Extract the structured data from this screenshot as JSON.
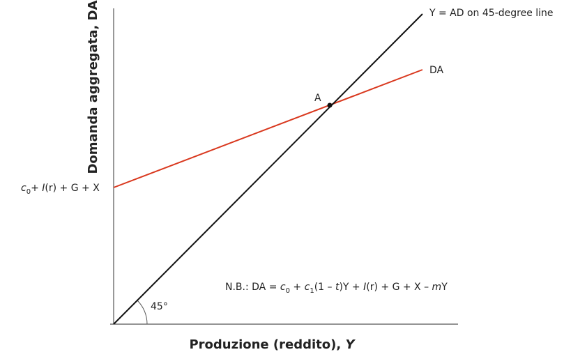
{
  "line_45_label": "Y = AD on 45-degree line",
  "da_label": "DA",
  "point_label": "A",
  "intercept_label": [
    "c",
    "0",
    "+ ",
    "I",
    "(r) + G + X"
  ],
  "angle_label": "45°",
  "note": [
    "N.B.: DA = ",
    "c",
    "0",
    " + ",
    "c",
    "1",
    "(1 – ",
    "t",
    ")Y + ",
    "I",
    "(r) + G + X – ",
    "m",
    "Y"
  ],
  "y_axis_label": "Domanda aggregata, DA",
  "x_axis_label": [
    "Produzione (reddito), ",
    "Y"
  ]
}
